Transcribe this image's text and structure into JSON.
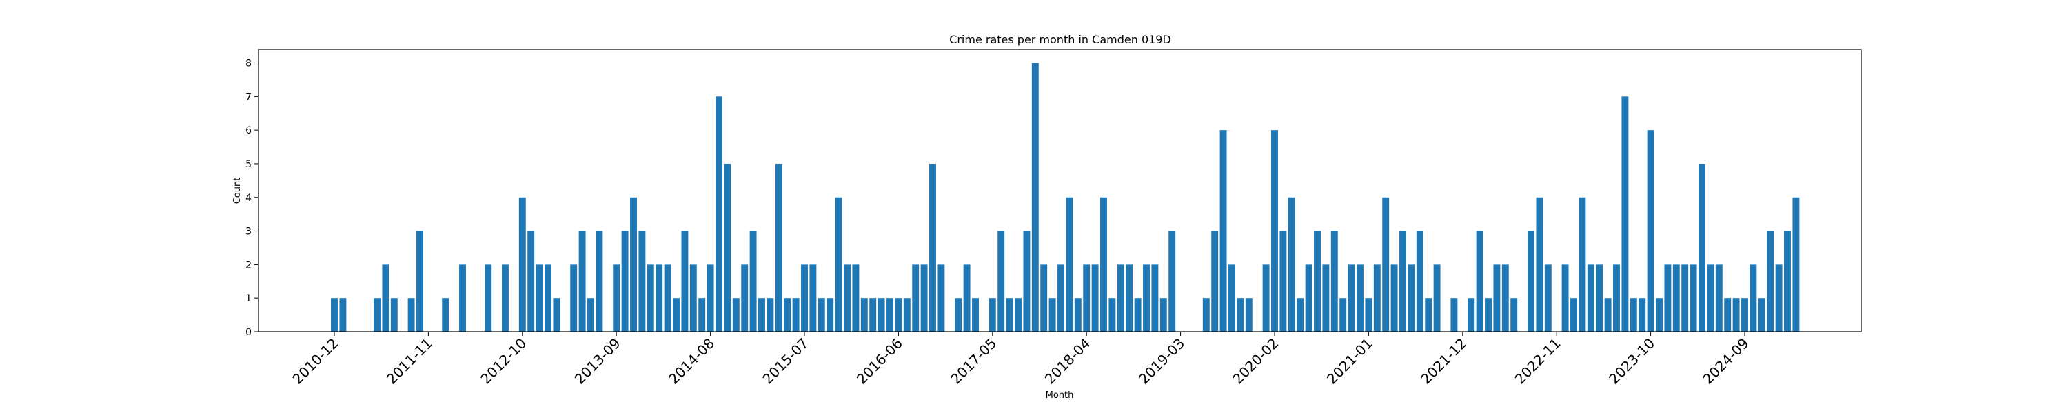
{
  "chart_data": {
    "type": "bar",
    "title": "Crime rates per month in Camden 019D",
    "xlabel": "Month",
    "ylabel": "Count",
    "ylim": [
      0,
      8.4
    ],
    "yticks": [
      0,
      1,
      2,
      3,
      4,
      5,
      6,
      7,
      8
    ],
    "xtick_labels": [
      "2010-12",
      "2011-11",
      "2012-10",
      "2013-09",
      "2014-08",
      "2015-07",
      "2016-06",
      "2017-05",
      "2018-04",
      "2019-03",
      "2020-02",
      "2021-01",
      "2021-12",
      "2022-11",
      "2023-10",
      "2024-09"
    ],
    "grid": false,
    "bar_color": "#1f77b4",
    "start_month": "2010-12",
    "series": [
      {
        "values": [
          1,
          1,
          0,
          0,
          0,
          1,
          2,
          1,
          0,
          1,
          3,
          0,
          0,
          1,
          0,
          2,
          0,
          0,
          2,
          0,
          2,
          0,
          4,
          3,
          2,
          2,
          1,
          0,
          2,
          3,
          1,
          3,
          0,
          2,
          3,
          4,
          3,
          2,
          2,
          2,
          1,
          3,
          2,
          1,
          2,
          7,
          5,
          1,
          2,
          3,
          1,
          1,
          5,
          1,
          1,
          2,
          2,
          1,
          1,
          4,
          2,
          2,
          1,
          1,
          1,
          1,
          1,
          1,
          2,
          2,
          5,
          2,
          0,
          1,
          2,
          1,
          0,
          1,
          3,
          1,
          1,
          3,
          8,
          2,
          1,
          2,
          4,
          1,
          2,
          2,
          4,
          1,
          2,
          2,
          1,
          2,
          2,
          1,
          3,
          0,
          0,
          0,
          1,
          3,
          6,
          2,
          1,
          1,
          0,
          2,
          6,
          3,
          4,
          1,
          2,
          3,
          2,
          3,
          1,
          2,
          2,
          1,
          2,
          4,
          2,
          3,
          2,
          3,
          1,
          2,
          0,
          1,
          0,
          1,
          3,
          1,
          2,
          2,
          1,
          0,
          3,
          4,
          2,
          0,
          2,
          1,
          4,
          2,
          2,
          1,
          2,
          7,
          1,
          1,
          6,
          1,
          2,
          2,
          2,
          2,
          5,
          2,
          2,
          1,
          1,
          1,
          2,
          1,
          3,
          2,
          3,
          4
        ]
      }
    ]
  }
}
